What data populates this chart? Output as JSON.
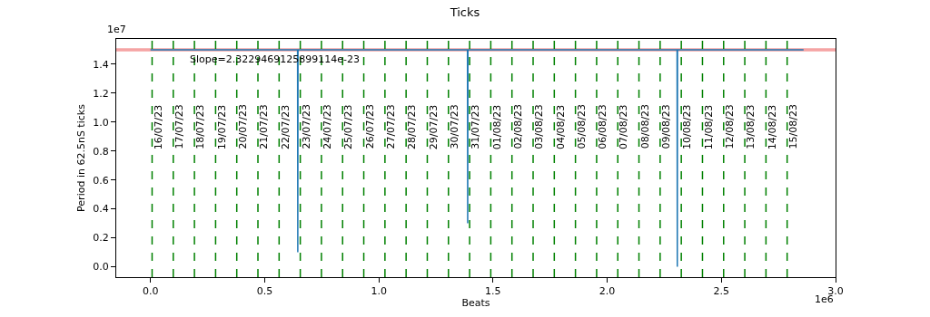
{
  "chart_data": {
    "type": "line",
    "title": "Ticks",
    "xlabel": "Beats",
    "ylabel": "Period in 62.5nS ticks",
    "xlim": [
      -0.15,
      3.0
    ],
    "xticks": [
      {
        "value": 0,
        "label": "0.0"
      },
      0.5,
      {
        "value": 1,
        "label": "1.0"
      },
      1.5,
      {
        "value": 2,
        "label": "2.0"
      },
      2.5,
      {
        "value": 3,
        "label": "3.0"
      }
    ],
    "ylim": [
      -0.072,
      1.575
    ],
    "yticks": [
      {
        "value": 0,
        "label": "0.0"
      },
      0.2,
      0.4,
      0.6,
      0.8,
      {
        "value": 1,
        "label": "1.0"
      },
      1.2,
      1.4
    ],
    "series": [
      {
        "color": "#f5a3a3",
        "x": [
          -0.15,
          3.0
        ],
        "values": [
          1.5,
          1.5
        ]
      },
      {
        "color": "#1f77b4",
        "x": [
          0,
          0.644,
          0.645,
          0.646,
          1.388,
          1.389,
          1.39,
          2.306,
          2.307,
          2.308,
          2.86
        ],
        "values": [
          1.5,
          1.5,
          0.1,
          1.5,
          1.5,
          0.3,
          1.5,
          1.5,
          0.0,
          1.5,
          1.5
        ]
      }
    ],
    "ref_lines": [
      {
        "axis": "x",
        "value": 0.007,
        "color": "#008000",
        "line_style": "dashed"
      },
      {
        "axis": "x",
        "value": 0.0997,
        "color": "#008000",
        "line_style": "dashed"
      },
      {
        "axis": "x",
        "value": 0.1924,
        "color": "#008000",
        "line_style": "dashed"
      },
      {
        "axis": "x",
        "value": 0.2851,
        "color": "#008000",
        "line_style": "dashed"
      },
      {
        "axis": "x",
        "value": 0.3778,
        "color": "#008000",
        "line_style": "dashed"
      },
      {
        "axis": "x",
        "value": 0.4705,
        "color": "#008000",
        "line_style": "dashed"
      },
      {
        "axis": "x",
        "value": 0.5632,
        "color": "#008000",
        "line_style": "dashed"
      },
      {
        "axis": "x",
        "value": 0.6559,
        "color": "#008000",
        "line_style": "dashed"
      },
      {
        "axis": "x",
        "value": 0.7486,
        "color": "#008000",
        "line_style": "dashed"
      },
      {
        "axis": "x",
        "value": 0.8413,
        "color": "#008000",
        "line_style": "dashed"
      },
      {
        "axis": "x",
        "value": 0.934,
        "color": "#008000",
        "line_style": "dashed"
      },
      {
        "axis": "x",
        "value": 1.0267,
        "color": "#008000",
        "line_style": "dashed"
      },
      {
        "axis": "x",
        "value": 1.1194,
        "color": "#008000",
        "line_style": "dashed"
      },
      {
        "axis": "x",
        "value": 1.2121,
        "color": "#008000",
        "line_style": "dashed"
      },
      {
        "axis": "x",
        "value": 1.3048,
        "color": "#008000",
        "line_style": "dashed"
      },
      {
        "axis": "x",
        "value": 1.3975,
        "color": "#008000",
        "line_style": "dashed"
      },
      {
        "axis": "x",
        "value": 1.4902,
        "color": "#008000",
        "line_style": "dashed"
      },
      {
        "axis": "x",
        "value": 1.5829,
        "color": "#008000",
        "line_style": "dashed"
      },
      {
        "axis": "x",
        "value": 1.6756,
        "color": "#008000",
        "line_style": "dashed"
      },
      {
        "axis": "x",
        "value": 1.7683,
        "color": "#008000",
        "line_style": "dashed"
      },
      {
        "axis": "x",
        "value": 1.861,
        "color": "#008000",
        "line_style": "dashed"
      },
      {
        "axis": "x",
        "value": 1.9537,
        "color": "#008000",
        "line_style": "dashed"
      },
      {
        "axis": "x",
        "value": 2.0464,
        "color": "#008000",
        "line_style": "dashed"
      },
      {
        "axis": "x",
        "value": 2.1391,
        "color": "#008000",
        "line_style": "dashed"
      },
      {
        "axis": "x",
        "value": 2.2318,
        "color": "#008000",
        "line_style": "dashed"
      },
      {
        "axis": "x",
        "value": 2.3245,
        "color": "#008000",
        "line_style": "dashed"
      },
      {
        "axis": "x",
        "value": 2.4172,
        "color": "#008000",
        "line_style": "dashed"
      },
      {
        "axis": "x",
        "value": 2.5099,
        "color": "#008000",
        "line_style": "dashed"
      },
      {
        "axis": "x",
        "value": 2.6026,
        "color": "#008000",
        "line_style": "dashed"
      },
      {
        "axis": "x",
        "value": 2.6953,
        "color": "#008000",
        "line_style": "dashed"
      },
      {
        "axis": "x",
        "value": 2.788,
        "color": "#008000",
        "line_style": "dashed"
      }
    ],
    "annotations": [
      "Slope=2.3229469125899114e-23",
      "1e7",
      "1e6",
      {
        "text": "16/07/23",
        "x": 0.007,
        "y": 0.8
      },
      {
        "text": "17/07/23",
        "x": 0.0997,
        "y": 0.8
      },
      {
        "text": "18/07/23",
        "x": 0.1924,
        "y": 0.8
      },
      {
        "text": "19/07/23",
        "x": 0.2851,
        "y": 0.8
      },
      {
        "text": "20/07/23",
        "x": 0.3778,
        "y": 0.8
      },
      {
        "text": "21/07/23",
        "x": 0.4705,
        "y": 0.8
      },
      {
        "text": "22/07/23",
        "x": 0.5632,
        "y": 0.8
      },
      {
        "text": "23/07/23",
        "x": 0.6559,
        "y": 0.8
      },
      {
        "text": "24/07/23",
        "x": 0.7486,
        "y": 0.8
      },
      {
        "text": "25/07/23",
        "x": 0.8413,
        "y": 0.8
      },
      {
        "text": "26/07/23",
        "x": 0.934,
        "y": 0.8
      },
      {
        "text": "27/07/23",
        "x": 1.0267,
        "y": 0.8
      },
      {
        "text": "28/07/23",
        "x": 1.1194,
        "y": 0.8
      },
      {
        "text": "29/07/23",
        "x": 1.2121,
        "y": 0.8
      },
      {
        "text": "30/07/23",
        "x": 1.3048,
        "y": 0.8
      },
      {
        "text": "31/07/23",
        "x": 1.3975,
        "y": 0.8
      },
      {
        "text": "01/08/23",
        "x": 1.4902,
        "y": 0.8
      },
      {
        "text": "02/08/23",
        "x": 1.5829,
        "y": 0.8
      },
      {
        "text": "03/08/23",
        "x": 1.6756,
        "y": 0.8
      },
      {
        "text": "04/08/23",
        "x": 1.7683,
        "y": 0.8
      },
      {
        "text": "05/08/23",
        "x": 1.861,
        "y": 0.8
      },
      {
        "text": "06/08/23",
        "x": 1.9537,
        "y": 0.8
      },
      {
        "text": "07/08/23",
        "x": 2.0464,
        "y": 0.8
      },
      {
        "text": "08/08/23",
        "x": 2.1391,
        "y": 0.8
      },
      {
        "text": "09/08/23",
        "x": 2.2318,
        "y": 0.8
      },
      {
        "text": "10/08/23",
        "x": 2.3245,
        "y": 0.8
      },
      {
        "text": "11/08/23",
        "x": 2.4172,
        "y": 0.8
      },
      {
        "text": "12/08/23",
        "x": 2.5099,
        "y": 0.8
      },
      {
        "text": "13/08/23",
        "x": 2.6026,
        "y": 0.8
      },
      {
        "text": "14/08/23",
        "x": 2.6953,
        "y": 0.8
      },
      {
        "text": "15/08/23",
        "x": 2.788,
        "y": 0.8
      }
    ]
  }
}
